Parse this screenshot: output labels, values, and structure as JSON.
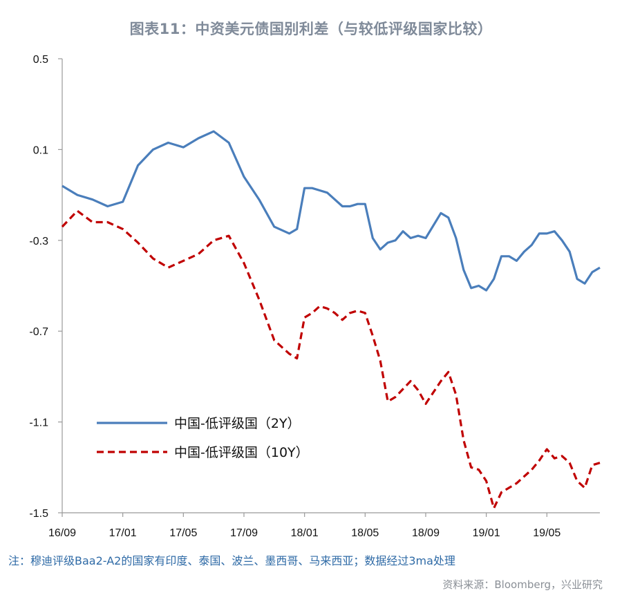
{
  "chart_data": {
    "type": "line",
    "title": "图表11：中资美元债国别利差（与较低评级国家比较）",
    "xlabel": "",
    "ylabel": "",
    "ylim": [
      -1.5,
      0.5
    ],
    "yticks": [
      "0.5",
      "0.1",
      "-0.3",
      "-0.7",
      "-1.1",
      "-1.5"
    ],
    "yticks_values": [
      0.5,
      0.1,
      -0.3,
      -0.7,
      -1.1,
      -1.5
    ],
    "xticks": [
      "16/09",
      "17/01",
      "17/05",
      "17/09",
      "18/01",
      "18/05",
      "18/09",
      "19/01",
      "19/05"
    ],
    "xticks_values": [
      0,
      4,
      8,
      12,
      16,
      20,
      24,
      28,
      32
    ],
    "xlim": [
      0,
      35
    ],
    "x_unit": "months since 2016-09",
    "grid": false,
    "legend_position": "bottom-left",
    "series": [
      {
        "name": "中国-低评级国（2Y）",
        "color": "#4a7ebb",
        "style": "solid",
        "points": [
          [
            0,
            -0.06
          ],
          [
            1,
            -0.1
          ],
          [
            2,
            -0.12
          ],
          [
            3,
            -0.15
          ],
          [
            4,
            -0.13
          ],
          [
            5,
            0.03
          ],
          [
            6,
            0.1
          ],
          [
            7,
            0.13
          ],
          [
            8,
            0.11
          ],
          [
            9,
            0.15
          ],
          [
            10,
            0.18
          ],
          [
            11,
            0.13
          ],
          [
            12,
            -0.02
          ],
          [
            13,
            -0.12
          ],
          [
            14,
            -0.24
          ],
          [
            15,
            -0.27
          ],
          [
            15.5,
            -0.25
          ],
          [
            16,
            -0.07
          ],
          [
            16.5,
            -0.07
          ],
          [
            17,
            -0.08
          ],
          [
            17.5,
            -0.09
          ],
          [
            18,
            -0.12
          ],
          [
            18.5,
            -0.15
          ],
          [
            19,
            -0.15
          ],
          [
            19.5,
            -0.14
          ],
          [
            20,
            -0.14
          ],
          [
            20.5,
            -0.29
          ],
          [
            21,
            -0.34
          ],
          [
            21.5,
            -0.31
          ],
          [
            22,
            -0.3
          ],
          [
            22.5,
            -0.26
          ],
          [
            23,
            -0.29
          ],
          [
            23.5,
            -0.28
          ],
          [
            24,
            -0.29
          ],
          [
            25,
            -0.18
          ],
          [
            25.5,
            -0.2
          ],
          [
            26,
            -0.29
          ],
          [
            26.5,
            -0.43
          ],
          [
            27,
            -0.51
          ],
          [
            27.5,
            -0.5
          ],
          [
            28,
            -0.52
          ],
          [
            28.5,
            -0.47
          ],
          [
            29,
            -0.37
          ],
          [
            29.5,
            -0.37
          ],
          [
            30,
            -0.39
          ],
          [
            30.5,
            -0.35
          ],
          [
            31,
            -0.32
          ],
          [
            31.5,
            -0.27
          ],
          [
            32,
            -0.27
          ],
          [
            32.5,
            -0.26
          ],
          [
            33,
            -0.3
          ],
          [
            33.5,
            -0.35
          ],
          [
            34,
            -0.47
          ],
          [
            34.5,
            -0.49
          ],
          [
            35,
            -0.44
          ],
          [
            35.5,
            -0.42
          ]
        ]
      },
      {
        "name": "中国-低评级国（10Y）",
        "color": "#c00000",
        "style": "dashed",
        "points": [
          [
            0,
            -0.24
          ],
          [
            1,
            -0.17
          ],
          [
            2,
            -0.22
          ],
          [
            3,
            -0.22
          ],
          [
            4,
            -0.25
          ],
          [
            5,
            -0.31
          ],
          [
            6,
            -0.38
          ],
          [
            7,
            -0.42
          ],
          [
            8,
            -0.39
          ],
          [
            9,
            -0.36
          ],
          [
            10,
            -0.3
          ],
          [
            11,
            -0.28
          ],
          [
            12,
            -0.4
          ],
          [
            13,
            -0.56
          ],
          [
            14,
            -0.74
          ],
          [
            15,
            -0.8
          ],
          [
            15.5,
            -0.82
          ],
          [
            16,
            -0.64
          ],
          [
            16.5,
            -0.62
          ],
          [
            17,
            -0.59
          ],
          [
            17.5,
            -0.6
          ],
          [
            18,
            -0.62
          ],
          [
            18.5,
            -0.65
          ],
          [
            19,
            -0.62
          ],
          [
            19.5,
            -0.61
          ],
          [
            20,
            -0.62
          ],
          [
            20.5,
            -0.72
          ],
          [
            21,
            -0.83
          ],
          [
            21.5,
            -1.01
          ],
          [
            22,
            -0.99
          ],
          [
            23,
            -0.92
          ],
          [
            23.5,
            -0.96
          ],
          [
            24,
            -1.02
          ],
          [
            25,
            -0.92
          ],
          [
            25.5,
            -0.88
          ],
          [
            26,
            -0.98
          ],
          [
            26.5,
            -1.18
          ],
          [
            27,
            -1.3
          ],
          [
            27.5,
            -1.31
          ],
          [
            28,
            -1.36
          ],
          [
            28.5,
            -1.48
          ],
          [
            29,
            -1.41
          ],
          [
            29.5,
            -1.39
          ],
          [
            30,
            -1.37
          ],
          [
            30.5,
            -1.34
          ],
          [
            31,
            -1.31
          ],
          [
            31.5,
            -1.27
          ],
          [
            32,
            -1.22
          ],
          [
            32.5,
            -1.26
          ],
          [
            33,
            -1.25
          ],
          [
            33.5,
            -1.28
          ],
          [
            34,
            -1.36
          ],
          [
            34.5,
            -1.39
          ],
          [
            35,
            -1.29
          ],
          [
            35.5,
            -1.28
          ]
        ]
      }
    ]
  },
  "note": "注：穆迪评级Baa2-A2的国家有印度、泰国、波兰、墨西哥、马来西亚；数据经过3ma处理",
  "source": "资料来源：Bloomberg，兴业研究"
}
